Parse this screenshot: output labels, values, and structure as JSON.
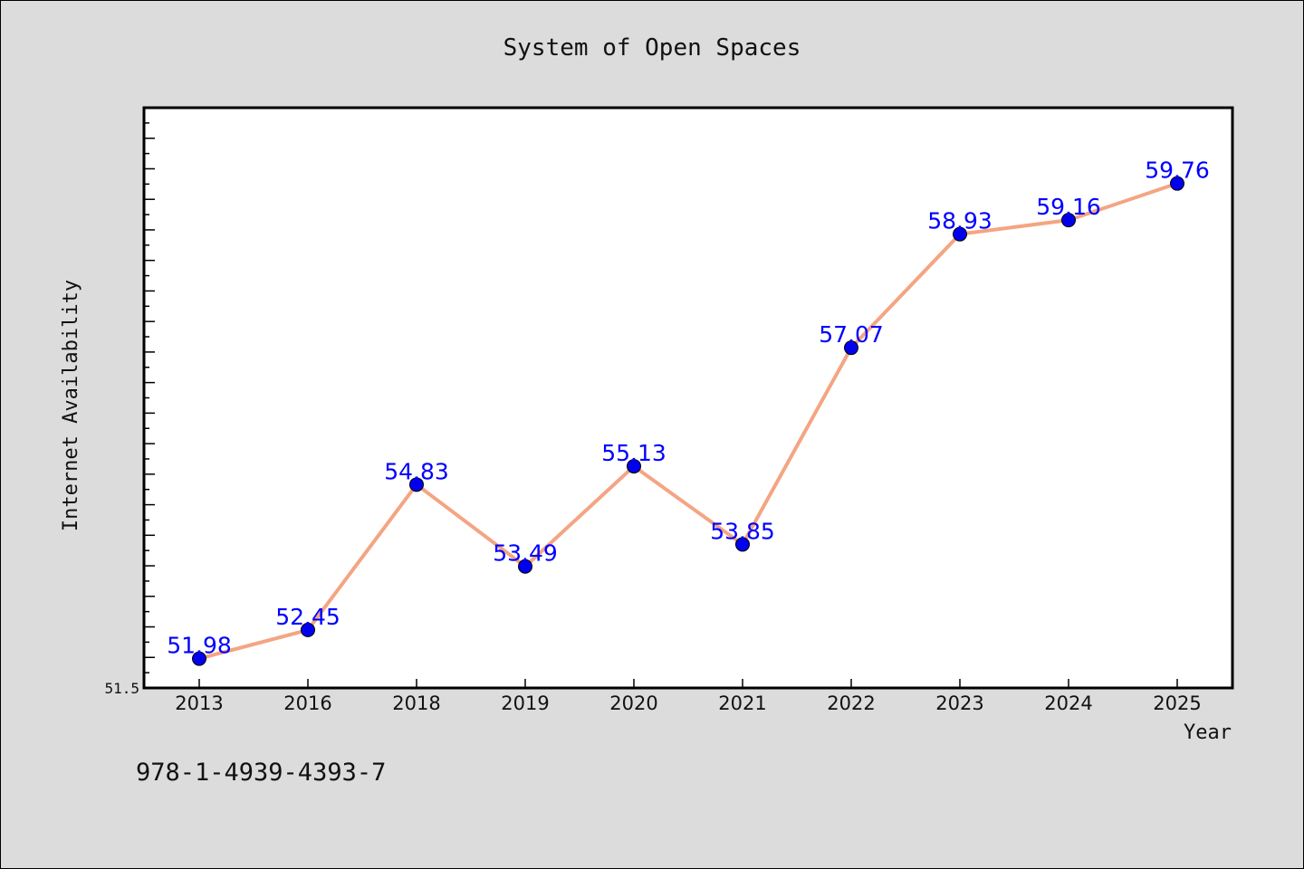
{
  "chart_data": {
    "type": "line",
    "title": "System of Open Spaces",
    "xlabel": "Year",
    "ylabel": "Internet Availability",
    "categories": [
      "2013",
      "2016",
      "2018",
      "2019",
      "2020",
      "2021",
      "2022",
      "2023",
      "2024",
      "2025"
    ],
    "series": [
      {
        "values": [
          51.98,
          52.45,
          54.83,
          53.49,
          55.13,
          53.85,
          57.07,
          58.93,
          59.16,
          59.76
        ],
        "data_labels": [
          "51.98",
          "52.45",
          "54.83",
          "53.49",
          "55.13",
          "53.85",
          "57.07",
          "58.93",
          "59.16",
          "59.76"
        ]
      }
    ],
    "ylim": [
      51.5,
      61.0
    ],
    "y_tick_labels": [
      "51.5"
    ],
    "grid": false,
    "legend": "none",
    "colors": {
      "line": "#f4a582",
      "marker": "#0000ee",
      "data_label": "#0000ff",
      "background": "#dcdcdc",
      "plot_area": "#ffffff"
    }
  },
  "footer_text": "978-1-4939-4393-7"
}
